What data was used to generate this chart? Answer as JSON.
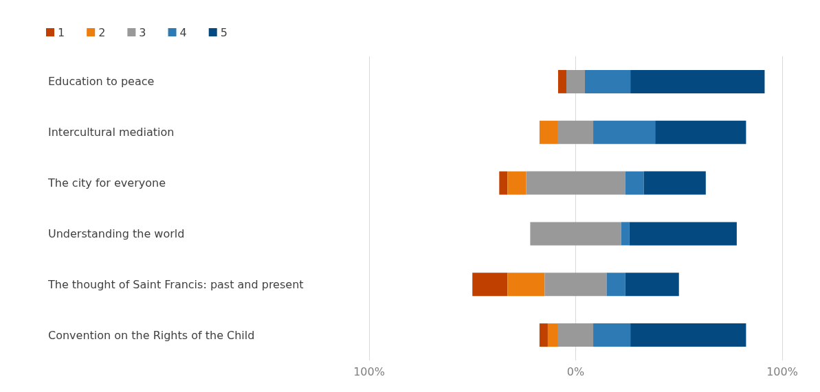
{
  "chart_data": {
    "type": "bar",
    "orientation": "horizontal",
    "categories": [
      "Education to peace",
      "Intercultural mediation",
      "The city for everyone",
      "Understanding the world",
      "The thought of Saint Francis: past and present",
      "Convention on the Rights of the Child"
    ],
    "series": [
      {
        "name": "1",
        "color": "#c04000",
        "values": [
          4,
          null,
          4,
          null,
          17,
          4
        ],
        "base": [
          -8.5,
          null,
          -37,
          null,
          -50,
          -17.5
        ]
      },
      {
        "name": "2",
        "color": "#ed7d0c",
        "values": [
          null,
          9,
          9,
          null,
          18,
          5
        ],
        "base": [
          null,
          -17.5,
          -33,
          null,
          -33,
          -13.5
        ]
      },
      {
        "name": "3",
        "color": "#999999",
        "values": [
          9,
          17,
          48,
          44,
          30,
          17
        ],
        "base": [
          -4.5,
          -8.5,
          -24,
          -22,
          -15,
          -8.5
        ]
      },
      {
        "name": "4",
        "color": "#2e7ab5",
        "values": [
          22,
          30,
          9,
          4,
          9,
          18
        ],
        "base": [
          4.5,
          8.5,
          24,
          22,
          15,
          8.5
        ]
      },
      {
        "name": "5",
        "color": "#044a80",
        "values": [
          65,
          44,
          30,
          52,
          26,
          56
        ],
        "base": [
          26.5,
          38.5,
          33,
          26,
          24,
          26.5
        ]
      }
    ],
    "xlim": [
      -100,
      100
    ],
    "xticks": [
      {
        "value": -100,
        "label": "100%"
      },
      {
        "value": 0,
        "label": "0%"
      },
      {
        "value": 100,
        "label": "100%"
      }
    ],
    "grid": "x",
    "legend": "top left"
  }
}
